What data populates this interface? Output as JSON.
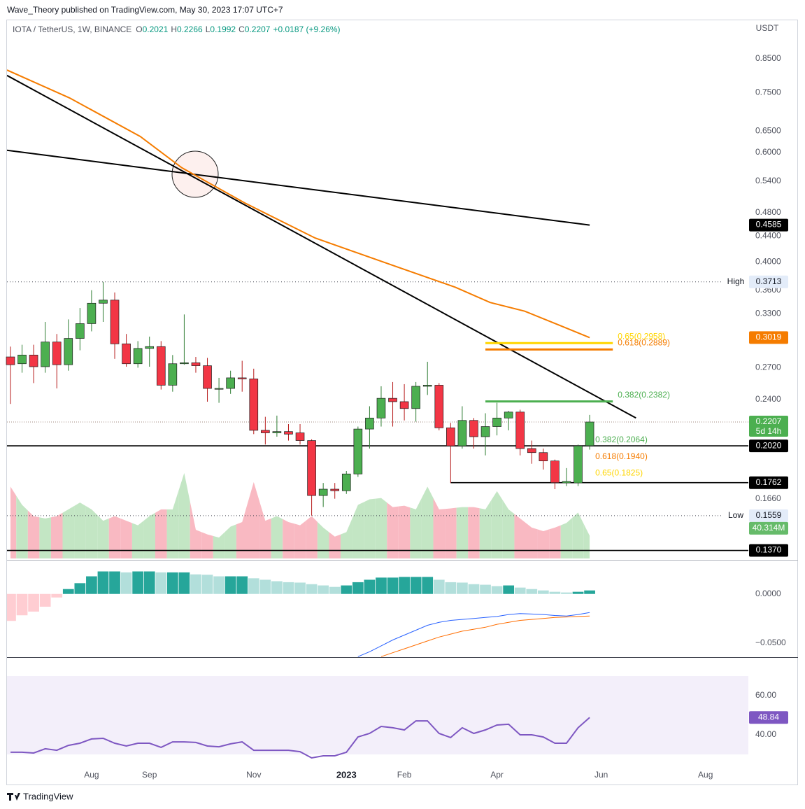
{
  "header": {
    "publisher": "Wave_Theory published on TradingView.com, May 30, 2023 17:07 UTC+7",
    "symbol": "IOTA / TetherUS, 1W, BINANCE",
    "ohlc_letters": [
      "O",
      "H",
      "L",
      "C"
    ],
    "change": "+0.0187 (+9.26%)",
    "currency": "USDT",
    "countdown": "5d 14h",
    "brand": "TradingView"
  },
  "chart_data": [
    {
      "type": "candlestick",
      "log": true,
      "grid": false,
      "xlim": [
        -0.3,
        63.7
      ],
      "xticks": [
        {
          "value": 7,
          "label": "Aug"
        },
        {
          "value": 12,
          "label": "Sep"
        },
        {
          "value": 21,
          "label": "Nov"
        },
        {
          "value": 29,
          "label": "2023"
        },
        {
          "value": 34,
          "label": "Feb"
        },
        {
          "value": 42,
          "label": "Apr"
        },
        {
          "value": 51,
          "label": "Jun"
        },
        {
          "value": 60,
          "label": "Aug"
        }
      ],
      "ylim": [
        0.1323,
        0.983
      ],
      "yticks": [
        {
          "value": 0.85,
          "label": "0.8500"
        },
        {
          "value": 0.75,
          "label": "0.7500"
        },
        {
          "value": 0.65,
          "label": "0.6500"
        },
        {
          "value": 0.6,
          "label": "0.6000"
        },
        {
          "value": 0.54,
          "label": "0.5400"
        },
        {
          "value": 0.48,
          "label": "0.4800"
        },
        {
          "value": 0.44,
          "label": "0.4400"
        },
        {
          "value": 0.4,
          "label": "0.4000"
        },
        {
          "value": 0.36,
          "label": "0.3600"
        },
        {
          "value": 0.33,
          "label": "0.3300"
        },
        {
          "value": 0.27,
          "label": "0.2700"
        },
        {
          "value": 0.24,
          "label": "0.2400"
        },
        {
          "value": 0.166,
          "label": "0.1660"
        }
      ],
      "candles": {
        "up": "#4caf50",
        "down": "#f23645",
        "open": [
          0.281,
          0.274,
          0.283,
          0.271,
          0.297,
          0.273,
          0.301,
          0.318,
          0.343,
          0.347,
          0.295,
          0.274,
          0.29,
          0.292,
          0.253,
          0.274,
          0.275,
          0.272,
          0.25,
          0.25,
          0.26,
          0.259,
          0.214,
          0.212,
          0.213,
          0.212,
          0.206,
          0.168,
          0.172,
          0.171,
          0.182,
          0.215,
          0.224,
          0.241,
          0.238,
          0.232,
          0.252,
          0.253,
          0.216,
          0.202,
          0.222,
          0.209,
          0.217,
          0.224,
          0.229,
          0.2,
          0.197,
          0.191,
          0.176,
          0.176,
          0.2021
        ],
        "high": [
          0.292,
          0.294,
          0.294,
          0.32,
          0.306,
          0.323,
          0.337,
          0.36,
          0.3713,
          0.357,
          0.306,
          0.298,
          0.303,
          0.298,
          0.283,
          0.329,
          0.281,
          0.28,
          0.26,
          0.267,
          0.277,
          0.269,
          0.225,
          0.226,
          0.219,
          0.219,
          0.207,
          0.176,
          0.176,
          0.184,
          0.217,
          0.234,
          0.252,
          0.256,
          0.254,
          0.256,
          0.276,
          0.255,
          0.22,
          0.234,
          0.224,
          0.228,
          0.237,
          0.23,
          0.231,
          0.206,
          0.2,
          0.192,
          0.186,
          0.203,
          0.2266
        ],
        "low": [
          0.236,
          0.265,
          0.255,
          0.265,
          0.25,
          0.267,
          0.288,
          0.309,
          0.32,
          0.279,
          0.271,
          0.27,
          0.271,
          0.249,
          0.247,
          0.273,
          0.265,
          0.238,
          0.237,
          0.245,
          0.247,
          0.211,
          0.203,
          0.209,
          0.206,
          0.203,
          0.1559,
          0.161,
          0.166,
          0.169,
          0.18,
          0.2,
          0.217,
          0.217,
          0.222,
          0.221,
          0.244,
          0.214,
          0.176,
          0.2,
          0.2,
          0.195,
          0.21,
          0.214,
          0.195,
          0.189,
          0.185,
          0.172,
          0.174,
          0.174,
          0.1992
        ],
        "close": [
          0.273,
          0.283,
          0.271,
          0.297,
          0.273,
          0.301,
          0.318,
          0.343,
          0.347,
          0.295,
          0.274,
          0.29,
          0.292,
          0.253,
          0.274,
          0.275,
          0.272,
          0.25,
          0.25,
          0.26,
          0.259,
          0.214,
          0.212,
          0.213,
          0.211,
          0.206,
          0.168,
          0.172,
          0.171,
          0.182,
          0.215,
          0.224,
          0.241,
          0.238,
          0.232,
          0.252,
          0.253,
          0.216,
          0.202,
          0.222,
          0.209,
          0.217,
          0.224,
          0.229,
          0.2,
          0.197,
          0.191,
          0.1762,
          0.177,
          0.202,
          0.2207
        ]
      },
      "volume": {
        "colors": [
          "#c3e6c4",
          "#f9b9c2"
        ],
        "label": "40.314M",
        "label_color": "#66bb6a",
        "values": [
          127.3,
          95.1,
          75.0,
          70.9,
          75.0,
          87.0,
          99.1,
          87.0,
          66.9,
          75.0,
          66.9,
          58.8,
          75.0,
          87.0,
          87.0,
          151.5,
          50.8,
          42.7,
          37.1,
          56.4,
          64.5,
          135.4,
          66.9,
          75.0,
          64.5,
          58.8,
          75.0,
          54.8,
          38.7,
          46.7,
          95.1,
          104.8,
          107.2,
          91.1,
          93.5,
          87.0,
          127.3,
          87.0,
          88.7,
          91.1,
          91.1,
          87.0,
          119.3,
          87.0,
          70.9,
          54.8,
          48.4,
          54.8,
          62.9,
          81.4,
          40.314
        ]
      },
      "ema": {
        "color": "#f57c00",
        "x": [
          -0.3,
          5.1,
          11.2,
          14.8,
          20.2,
          26.3,
          32.3,
          38.4,
          41.4,
          44.4,
          47.4,
          50
        ],
        "values": [
          0.815,
          0.735,
          0.637,
          0.567,
          0.498,
          0.437,
          0.399,
          0.364,
          0.344,
          0.333,
          0.316,
          0.3019
        ]
      },
      "trendlines": [
        {
          "color": "#000000",
          "x": [
            -0.3,
            54
          ],
          "values": [
            0.799,
            0.224
          ]
        },
        {
          "color": "#000000",
          "x": [
            -0.3,
            50
          ],
          "values": [
            0.605,
            0.4585
          ]
        }
      ],
      "levels": [
        {
          "value": 0.202,
          "label": "0.2020",
          "start": -0.3
        },
        {
          "value": 0.1762,
          "start": 38
        },
        {
          "value": 0.137,
          "label": "0.1370",
          "start": -0.3
        }
      ],
      "fib": [
        {
          "label": "0.65(0.2958)",
          "value": 0.2958,
          "color": "#ffd600",
          "x": [
            41,
            52
          ]
        },
        {
          "label": "0.618(0.2889)",
          "value": 0.2889,
          "color": "#f57c00",
          "x": [
            41,
            52
          ]
        },
        {
          "label": "0.382(0.2382)",
          "value": 0.2382,
          "color": "#4caf50",
          "x": [
            41,
            52
          ]
        },
        {
          "label": "0.382(0.2064)",
          "value": 0.2064,
          "color": "#4caf50"
        },
        {
          "label": "0.618(0.1940)",
          "value": 0.194,
          "color": "#f57c00"
        },
        {
          "label": "0.65(0.1825)",
          "value": 0.1825,
          "color": "#ffd600"
        }
      ],
      "high": {
        "name": "High",
        "value": 0.3713
      },
      "low": {
        "name": "Low",
        "value": 0.1559
      }
    },
    {
      "type": "macd",
      "ylim": [
        -0.0652,
        0.0348
      ],
      "yticks": [
        {
          "value": 0,
          "label": "0.0000"
        },
        {
          "value": -0.05,
          "label": "−0.0500"
        }
      ],
      "histogram": {
        "colors": [
          "#26a69a",
          "#b2dfdb",
          "#ffcdd2",
          "#ff5252"
        ],
        "values": [
          -0.0275,
          -0.0218,
          -0.018,
          -0.013,
          -0.0036,
          0.005,
          0.011,
          0.018,
          0.023,
          0.023,
          0.022,
          0.023,
          0.023,
          0.022,
          0.022,
          0.022,
          0.02,
          0.0196,
          0.018,
          0.018,
          0.018,
          0.016,
          0.0145,
          0.013,
          0.012,
          0.0116,
          0.01,
          0.0087,
          0.0072,
          0.0087,
          0.012,
          0.0145,
          0.0167,
          0.0167,
          0.0174,
          0.0174,
          0.0174,
          0.0145,
          0.012,
          0.0116,
          0.01,
          0.0094,
          0.008,
          0.0087,
          0.0065,
          0.005,
          0.0036,
          0.0022,
          0.0015,
          0.0022,
          0.0036
        ]
      },
      "lines": [
        {
          "color": "#2962ff",
          "values": [
            null,
            null,
            null,
            null,
            null,
            null,
            null,
            null,
            null,
            null,
            null,
            null,
            null,
            null,
            null,
            null,
            null,
            null,
            null,
            null,
            null,
            null,
            null,
            null,
            null,
            null,
            null,
            null,
            null,
            null,
            -0.064,
            -0.059,
            -0.053,
            -0.047,
            -0.042,
            -0.037,
            -0.032,
            -0.029,
            -0.027,
            -0.026,
            -0.025,
            -0.024,
            -0.023,
            -0.021,
            -0.02,
            -0.0205,
            -0.021,
            -0.022,
            -0.0225,
            -0.021,
            -0.019
          ]
        },
        {
          "color": "#ff6d00",
          "values": [
            null,
            null,
            null,
            null,
            null,
            null,
            null,
            null,
            null,
            null,
            null,
            null,
            null,
            null,
            null,
            null,
            null,
            null,
            null,
            null,
            null,
            null,
            null,
            null,
            null,
            null,
            null,
            null,
            null,
            null,
            null,
            null,
            -0.064,
            -0.06,
            -0.056,
            -0.052,
            -0.048,
            -0.044,
            -0.041,
            -0.038,
            -0.036,
            -0.034,
            -0.031,
            -0.029,
            -0.027,
            -0.026,
            -0.025,
            -0.024,
            -0.0235,
            -0.023,
            -0.0225
          ]
        }
      ]
    },
    {
      "type": "line",
      "ylim": [
        15,
        77.5
      ],
      "yticks": [
        {
          "value": 60,
          "label": "60.00"
        },
        {
          "value": 40,
          "label": "40.00"
        }
      ],
      "band": [
        30,
        70
      ],
      "band_color": "#f3effa",
      "color": "#7e57c2",
      "values": [
        31.1,
        31.1,
        30.7,
        32.9,
        32.1,
        34.6,
        35.7,
        37.9,
        38.2,
        35.7,
        34.3,
        35.7,
        35.7,
        33.6,
        36.4,
        36.4,
        36.1,
        34.3,
        33.9,
        35.4,
        36.4,
        32.1,
        32.1,
        32.1,
        32.1,
        31.4,
        28.2,
        29.3,
        29.3,
        31.1,
        38.9,
        40.7,
        44.3,
        43.6,
        42.5,
        47.1,
        47.1,
        40.7,
        38.6,
        43.6,
        40.7,
        42.5,
        45.0,
        45.4,
        40.0,
        40.0,
        38.9,
        35.7,
        35.7,
        43.6,
        48.84
      ]
    }
  ]
}
